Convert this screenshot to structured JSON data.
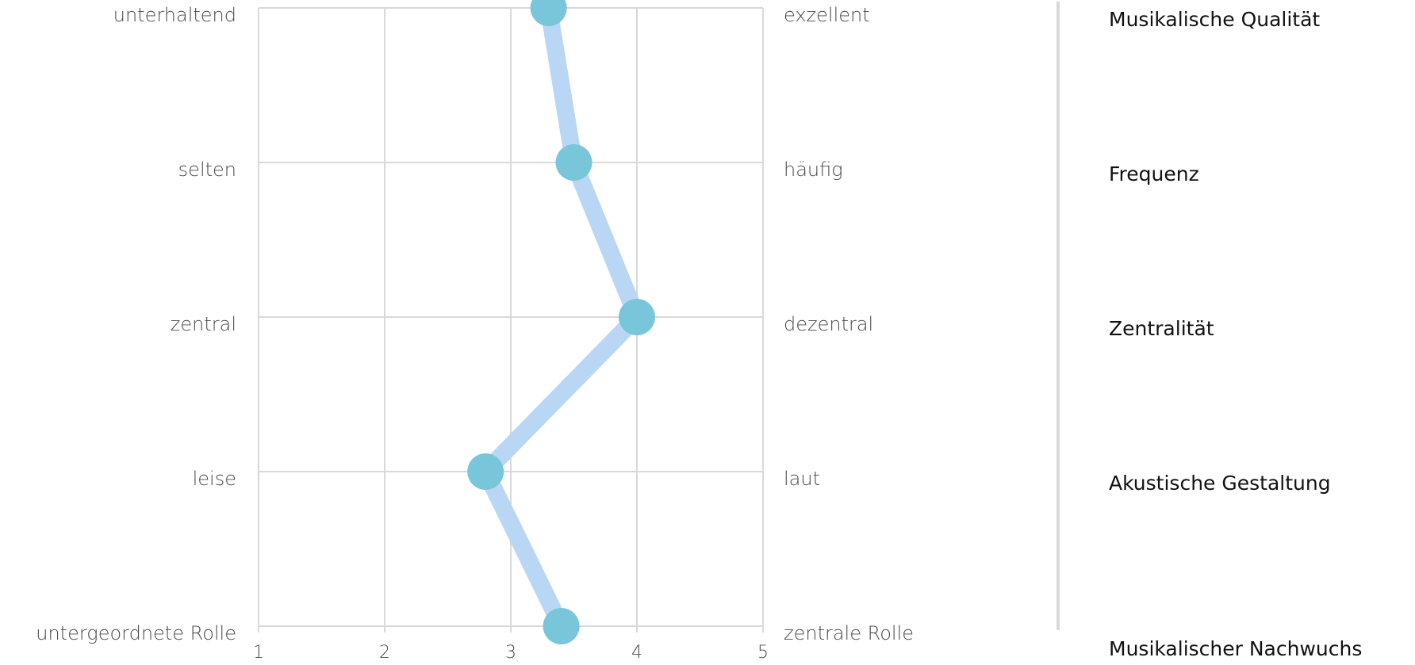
{
  "chart_data": {
    "type": "line",
    "x": [
      1,
      2,
      3,
      4,
      5
    ],
    "xlim": [
      1,
      5
    ],
    "xticks": [
      "1",
      "2",
      "3",
      "4",
      "5"
    ],
    "grid": true,
    "rows": [
      {
        "left": "unterhaltend",
        "right": "exzellent",
        "category": "Musikalische Qualität",
        "value": 3.3
      },
      {
        "left": "selten",
        "right": "häufig",
        "category": "Frequenz",
        "value": 3.5
      },
      {
        "left": "zentral",
        "right": "dezentral",
        "category": "Zentralität",
        "value": 4.0
      },
      {
        "left": "leise",
        "right": "laut",
        "category": "Akustische Gestaltung",
        "value": 2.8
      },
      {
        "left": "untergeordnete Rolle",
        "right": "zentrale Rolle",
        "category": "Musikalischer Nachwuchs",
        "value": 3.4
      }
    ],
    "colors": {
      "line": "#b9d7f4",
      "marker": "#79c5d9",
      "grid": "#d9d9d9",
      "divider": "#d9d9d9"
    }
  }
}
